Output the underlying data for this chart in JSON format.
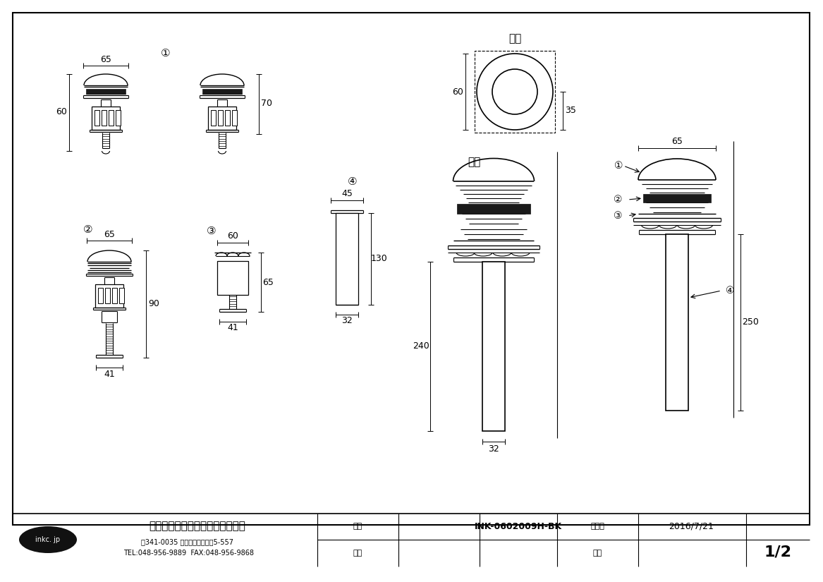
{
  "bg_color": "#ffffff",
  "line_color": "#000000",
  "company_name": "株式会社インクコーポレーション",
  "company_addr": "〒341-0035 埼玉県三郷市鹿野5-557",
  "company_tel": "TEL:048-956-9889  FAX:048-956-9868",
  "company_url": "inkc. jp",
  "product_id": "INK-0602009H-BK",
  "date": "2016/7/21",
  "scale": "1/2",
  "label_hinmei": "品名",
  "label_zumei": "図名",
  "label_sakusei": "作成日",
  "label_shakudo": "尺度",
  "label_jomen": "上面",
  "label_shomen": "正面",
  "num1": "①",
  "num2": "②",
  "num3": "③",
  "num4": "④"
}
